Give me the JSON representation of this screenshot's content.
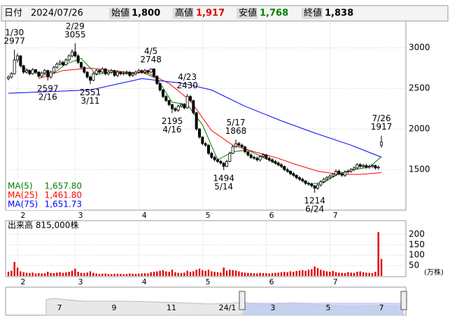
{
  "header": {
    "date_label": "日付",
    "date": "2024/07/26",
    "open_label": "始値",
    "open": "1,800",
    "high_label": "高値",
    "high": "1,917",
    "low_label": "安値",
    "low": "1,768",
    "close_label": "終値",
    "close": "1,838"
  },
  "chart_data": [
    {
      "type": "candlestick",
      "xlim": [
        0,
        123
      ],
      "xticks": [
        {
          "value": 4,
          "label": "2"
        },
        {
          "value": 23,
          "label": "3"
        },
        {
          "value": 44,
          "label": "4"
        },
        {
          "value": 65,
          "label": "5"
        },
        {
          "value": 86,
          "label": "6"
        },
        {
          "value": 107,
          "label": "7"
        }
      ],
      "ylim": [
        1000,
        3330
      ],
      "yticks": [
        1500,
        2000,
        2500,
        3000
      ],
      "grid": true,
      "up_color": "#ffffff",
      "down_color": "#000000",
      "ohlc": [
        [
          2620,
          2660,
          2600,
          2640
        ],
        [
          2640,
          2700,
          2620,
          2680
        ],
        [
          2680,
          2977,
          2670,
          2850
        ],
        [
          2850,
          2930,
          2820,
          2900
        ],
        [
          2900,
          2910,
          2760,
          2780
        ],
        [
          2780,
          2790,
          2680,
          2700
        ],
        [
          2700,
          2740,
          2680,
          2720
        ],
        [
          2720,
          2730,
          2660,
          2680
        ],
        [
          2680,
          2750,
          2670,
          2730
        ],
        [
          2730,
          2740,
          2680,
          2700
        ],
        [
          2700,
          2710,
          2630,
          2650
        ],
        [
          2650,
          2710,
          2630,
          2690
        ],
        [
          2690,
          2740,
          2670,
          2720
        ],
        [
          2720,
          2730,
          2597,
          2640
        ],
        [
          2640,
          2720,
          2620,
          2700
        ],
        [
          2700,
          2780,
          2690,
          2760
        ],
        [
          2760,
          2820,
          2740,
          2800
        ],
        [
          2800,
          2850,
          2780,
          2820
        ],
        [
          2820,
          2840,
          2770,
          2790
        ],
        [
          2790,
          2870,
          2780,
          2850
        ],
        [
          2850,
          2920,
          2830,
          2900
        ],
        [
          2900,
          2980,
          2880,
          2950
        ],
        [
          2950,
          3055,
          2880,
          2900
        ],
        [
          2900,
          2920,
          2800,
          2820
        ],
        [
          2820,
          2830,
          2740,
          2760
        ],
        [
          2760,
          2770,
          2680,
          2700
        ],
        [
          2700,
          2710,
          2620,
          2640
        ],
        [
          2640,
          2660,
          2551,
          2600
        ],
        [
          2600,
          2700,
          2590,
          2680
        ],
        [
          2680,
          2740,
          2660,
          2720
        ],
        [
          2720,
          2740,
          2680,
          2700
        ],
        [
          2700,
          2760,
          2690,
          2740
        ],
        [
          2740,
          2750,
          2660,
          2680
        ],
        [
          2680,
          2720,
          2660,
          2700
        ],
        [
          2700,
          2740,
          2680,
          2720
        ],
        [
          2720,
          2730,
          2640,
          2660
        ],
        [
          2660,
          2720,
          2640,
          2700
        ],
        [
          2700,
          2710,
          2660,
          2680
        ],
        [
          2680,
          2710,
          2660,
          2690
        ],
        [
          2690,
          2720,
          2670,
          2700
        ],
        [
          2700,
          2710,
          2640,
          2660
        ],
        [
          2660,
          2700,
          2640,
          2680
        ],
        [
          2680,
          2720,
          2660,
          2700
        ],
        [
          2700,
          2740,
          2680,
          2720
        ],
        [
          2720,
          2730,
          2680,
          2700
        ],
        [
          2700,
          2740,
          2680,
          2720
        ],
        [
          2720,
          2730,
          2680,
          2700
        ],
        [
          2700,
          2748,
          2690,
          2740
        ],
        [
          2740,
          2745,
          2630,
          2650
        ],
        [
          2650,
          2660,
          2540,
          2560
        ],
        [
          2560,
          2570,
          2460,
          2480
        ],
        [
          2480,
          2490,
          2380,
          2400
        ],
        [
          2400,
          2420,
          2330,
          2350
        ],
        [
          2350,
          2360,
          2280,
          2300
        ],
        [
          2300,
          2310,
          2195,
          2250
        ],
        [
          2250,
          2270,
          2210,
          2230
        ],
        [
          2230,
          2300,
          2210,
          2280
        ],
        [
          2280,
          2320,
          2260,
          2300
        ],
        [
          2300,
          2320,
          2240,
          2260
        ],
        [
          2260,
          2430,
          2250,
          2400
        ],
        [
          2400,
          2420,
          2330,
          2350
        ],
        [
          2350,
          2360,
          2180,
          2200
        ],
        [
          2200,
          2210,
          1980,
          2000
        ],
        [
          2000,
          2010,
          1880,
          1900
        ],
        [
          1900,
          1910,
          1800,
          1820
        ],
        [
          1820,
          1840,
          1780,
          1800
        ],
        [
          1800,
          1810,
          1680,
          1700
        ],
        [
          1700,
          1720,
          1630,
          1650
        ],
        [
          1650,
          1670,
          1600,
          1620
        ],
        [
          1620,
          1640,
          1580,
          1600
        ],
        [
          1600,
          1620,
          1560,
          1580
        ],
        [
          1580,
          1590,
          1494,
          1540
        ],
        [
          1540,
          1620,
          1530,
          1600
        ],
        [
          1600,
          1720,
          1590,
          1700
        ],
        [
          1700,
          1800,
          1690,
          1780
        ],
        [
          1780,
          1868,
          1770,
          1820
        ],
        [
          1820,
          1840,
          1780,
          1800
        ],
        [
          1800,
          1820,
          1760,
          1780
        ],
        [
          1780,
          1790,
          1700,
          1720
        ],
        [
          1720,
          1730,
          1660,
          1680
        ],
        [
          1680,
          1700,
          1630,
          1650
        ],
        [
          1650,
          1670,
          1620,
          1640
        ],
        [
          1640,
          1660,
          1600,
          1620
        ],
        [
          1620,
          1680,
          1600,
          1660
        ],
        [
          1660,
          1700,
          1640,
          1680
        ],
        [
          1680,
          1690,
          1620,
          1640
        ],
        [
          1640,
          1660,
          1600,
          1620
        ],
        [
          1620,
          1640,
          1580,
          1600
        ],
        [
          1600,
          1620,
          1560,
          1580
        ],
        [
          1580,
          1600,
          1540,
          1560
        ],
        [
          1560,
          1580,
          1520,
          1540
        ],
        [
          1540,
          1550,
          1480,
          1500
        ],
        [
          1500,
          1520,
          1460,
          1480
        ],
        [
          1480,
          1490,
          1430,
          1450
        ],
        [
          1450,
          1470,
          1410,
          1430
        ],
        [
          1430,
          1440,
          1380,
          1400
        ],
        [
          1400,
          1420,
          1360,
          1380
        ],
        [
          1380,
          1400,
          1340,
          1360
        ],
        [
          1360,
          1370,
          1310,
          1330
        ],
        [
          1330,
          1350,
          1300,
          1320
        ],
        [
          1320,
          1340,
          1280,
          1300
        ],
        [
          1300,
          1310,
          1214,
          1270
        ],
        [
          1270,
          1330,
          1250,
          1310
        ],
        [
          1310,
          1370,
          1290,
          1350
        ],
        [
          1350,
          1400,
          1330,
          1380
        ],
        [
          1380,
          1420,
          1360,
          1400
        ],
        [
          1400,
          1440,
          1380,
          1420
        ],
        [
          1420,
          1460,
          1400,
          1440
        ],
        [
          1440,
          1500,
          1420,
          1480
        ],
        [
          1480,
          1500,
          1430,
          1450
        ],
        [
          1450,
          1470,
          1410,
          1430
        ],
        [
          1430,
          1490,
          1410,
          1470
        ],
        [
          1470,
          1500,
          1450,
          1480
        ],
        [
          1480,
          1520,
          1460,
          1500
        ],
        [
          1500,
          1540,
          1480,
          1520
        ],
        [
          1520,
          1580,
          1500,
          1560
        ],
        [
          1560,
          1580,
          1520,
          1540
        ],
        [
          1540,
          1570,
          1520,
          1550
        ],
        [
          1550,
          1570,
          1510,
          1530
        ],
        [
          1530,
          1560,
          1510,
          1540
        ],
        [
          1540,
          1570,
          1520,
          1550
        ],
        [
          1550,
          1560,
          1500,
          1520
        ],
        [
          1520,
          1550,
          1500,
          1530
        ],
        [
          1800,
          1917,
          1768,
          1838
        ]
      ],
      "series": [
        {
          "name": "MA(5)",
          "color": "#008000",
          "latest": "1,657.80",
          "x": [
            4,
            9,
            14,
            19,
            24,
            29,
            34,
            39,
            44,
            49,
            54,
            59,
            64,
            69,
            74,
            79,
            84,
            89,
            94,
            99,
            104,
            109,
            114,
            119,
            123
          ],
          "values": [
            2770,
            2690,
            2660,
            2800,
            2870,
            2670,
            2700,
            2680,
            2700,
            2620,
            2330,
            2300,
            2050,
            1620,
            1720,
            1740,
            1650,
            1560,
            1430,
            1320,
            1340,
            1450,
            1500,
            1530,
            1658
          ]
        },
        {
          "name": "MA(25)",
          "color": "#ff0000",
          "latest": "1,461.80",
          "x": [
            10,
            18,
            27,
            39,
            46,
            53,
            60,
            67,
            74,
            81,
            88,
            95,
            102,
            109,
            116,
            123
          ],
          "values": [
            2620,
            2720,
            2750,
            2700,
            2690,
            2560,
            2350,
            1980,
            1800,
            1720,
            1650,
            1560,
            1480,
            1440,
            1440,
            1462
          ]
        },
        {
          "name": "MA(75)",
          "color": "#0000ff",
          "latest": "1,651.73",
          "x": [
            0,
            27,
            44,
            58,
            67,
            78,
            90,
            101,
            113,
            123
          ],
          "values": [
            2440,
            2480,
            2620,
            2560,
            2480,
            2280,
            2100,
            1950,
            1800,
            1652
          ]
        }
      ],
      "annotations": [
        {
          "date": "1/30",
          "value": 2977
        },
        {
          "date": "2/16",
          "value": 2597
        },
        {
          "date": "2/29",
          "value": 3055
        },
        {
          "date": "3/11",
          "value": 2551
        },
        {
          "date": "4/5",
          "value": 2748
        },
        {
          "date": "4/16",
          "value": 2195
        },
        {
          "date": "4/23",
          "value": 2430
        },
        {
          "date": "5/14",
          "value": 1494
        },
        {
          "date": "5/17",
          "value": 1868
        },
        {
          "date": "6/24",
          "value": 1214
        },
        {
          "date": "7/26",
          "value": 1917
        }
      ]
    },
    {
      "type": "bar",
      "title": "出来高 815,000株",
      "unit": "(万株)",
      "color": "#e00000",
      "xlim": [
        0,
        123
      ],
      "xticks": [
        {
          "value": 4,
          "label": "2"
        },
        {
          "value": 23,
          "label": "3"
        },
        {
          "value": 44,
          "label": "4"
        },
        {
          "value": 65,
          "label": "5"
        },
        {
          "value": 86,
          "label": "6"
        },
        {
          "value": 107,
          "label": "7"
        }
      ],
      "ylim": [
        0,
        265
      ],
      "yticks": [
        50,
        100,
        150,
        200
      ],
      "grid": true,
      "values": [
        20,
        25,
        67,
        40,
        22,
        18,
        15,
        14,
        16,
        12,
        14,
        12,
        13,
        20,
        15,
        14,
        16,
        18,
        15,
        17,
        20,
        25,
        35,
        20,
        15,
        14,
        16,
        22,
        15,
        12,
        10,
        11,
        12,
        10,
        9,
        10,
        11,
        10,
        9,
        10,
        12,
        11,
        10,
        11,
        12,
        13,
        12,
        18,
        20,
        22,
        25,
        28,
        22,
        20,
        30,
        18,
        15,
        14,
        16,
        25,
        20,
        22,
        30,
        35,
        28,
        25,
        30,
        22,
        20,
        18,
        16,
        40,
        25,
        30,
        28,
        26,
        22,
        18,
        16,
        15,
        14,
        13,
        12,
        15,
        14,
        13,
        12,
        14,
        15,
        16,
        18,
        20,
        18,
        22,
        20,
        24,
        26,
        28,
        25,
        30,
        32,
        45,
        38,
        30,
        25,
        22,
        20,
        24,
        18,
        16,
        15,
        14,
        18,
        16,
        15,
        20,
        22,
        18,
        16,
        15,
        14,
        20,
        210,
        81.5
      ]
    }
  ],
  "navigator": {
    "labels": [
      "7",
      "9",
      "11",
      "24/1",
      "3",
      "5",
      "7"
    ]
  }
}
